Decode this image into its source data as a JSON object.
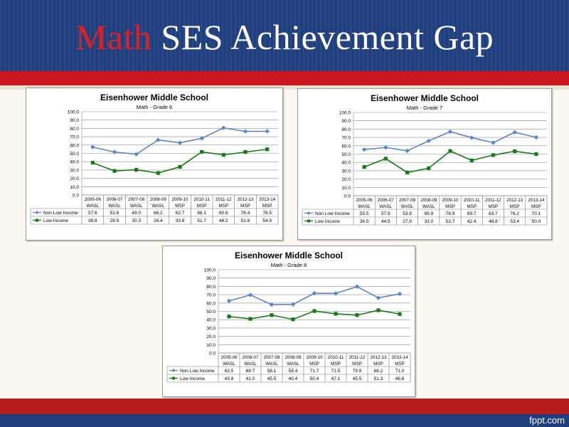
{
  "slide": {
    "title_accent": "Math",
    "title_rest": " SES Achievement Gap",
    "brand": "fppt.com"
  },
  "colors": {
    "header_blue": "#1f3f7f",
    "band_red": "#c8161d",
    "non_low_income": "#5b86c6",
    "low_income": "#177a17"
  },
  "chart_data": [
    {
      "type": "line",
      "title": "Eisenhower Middle School",
      "subtitle": "Math - Grade 6",
      "categories": [
        "2005-06",
        "2006-07",
        "2007-08",
        "2008-09",
        "2009-10",
        "2010-11",
        "2011-12",
        "2012-13",
        "2013-14"
      ],
      "test_labels": [
        "WASL",
        "WASL",
        "WASL",
        "WASL",
        "MSP",
        "MSP",
        "MSP",
        "MSP",
        "MSP"
      ],
      "yticks": [
        "100.0",
        "90.0",
        "80.0",
        "70.0",
        "60.0",
        "50.0",
        "40.0",
        "30.0",
        "20.0",
        "10.0",
        "0.0"
      ],
      "ylim": [
        0,
        100
      ],
      "grid": true,
      "legend": "table-below",
      "series": [
        {
          "name": "Non Low Income",
          "values": [
            57.6,
            51.6,
            49.0,
            66.2,
            62.7,
            68.1,
            80.6,
            76.4,
            76.5
          ],
          "labels": [
            "57.6",
            "51.6",
            "49.0",
            "66.2",
            "62.7",
            "68.1",
            "80.6",
            "76.4",
            "76.5"
          ]
        },
        {
          "name": "Low Income",
          "values": [
            38.8,
            28.9,
            30.3,
            26.4,
            33.8,
            51.7,
            48.2,
            51.6,
            54.9
          ],
          "labels": [
            "38.8",
            "28.9",
            "30.3",
            "26.4",
            "33.8",
            "51.7",
            "48.2",
            "51.6",
            "54.9"
          ]
        }
      ]
    },
    {
      "type": "line",
      "title": "Eisenhower Middle School",
      "subtitle": "Math - Grade 7",
      "categories": [
        "2005-06",
        "2006-07",
        "2007-08",
        "2008-09",
        "2009-10",
        "2010-11",
        "2011-12",
        "2012-13",
        "2013-14"
      ],
      "test_labels": [
        "WASL",
        "WASL",
        "WASL",
        "WASL",
        "MSP",
        "MSP",
        "MSP",
        "MSP",
        "MSP"
      ],
      "yticks": [
        "100.0",
        "90.0",
        "80.0",
        "70.0",
        "60.0",
        "50.0",
        "40.0",
        "30.0",
        "20.0",
        "10.0",
        "0.0"
      ],
      "ylim": [
        0,
        100
      ],
      "grid": true,
      "legend": "table-below",
      "series": [
        {
          "name": "Non Low Income",
          "values": [
            55.5,
            57.9,
            53.9,
            65.9,
            76.9,
            69.7,
            63.7,
            76.2,
            70.1
          ],
          "labels": [
            "55.5",
            "57.9",
            "53.9",
            "65.9",
            "76.9",
            "69.7",
            "63.7",
            "76.2",
            "70.1"
          ]
        },
        {
          "name": "Low Income",
          "values": [
            34.5,
            44.5,
            27.9,
            33.0,
            53.7,
            42.4,
            48.8,
            53.4,
            50.0
          ],
          "labels": [
            "34.5",
            "44.5",
            "27.9",
            "33.0",
            "53.7",
            "42.4",
            "48.8",
            "53.4",
            "50.0"
          ]
        }
      ]
    },
    {
      "type": "line",
      "title": "Eisenhower Middle School",
      "subtitle": "Math - Grade 8",
      "categories": [
        "2005-06",
        "2006-07",
        "2007-08",
        "2008-09",
        "2009-10",
        "2010-11",
        "2011-12",
        "2012-13",
        "2013-14"
      ],
      "test_labels": [
        "WASL",
        "WASL",
        "WASL",
        "WASL",
        "MSP",
        "MSP",
        "MSP",
        "MSP",
        "MSP"
      ],
      "yticks": [
        "100.0",
        "90.0",
        "80.0",
        "70.0",
        "60.0",
        "50.0",
        "40.0",
        "30.0",
        "20.0",
        "10.0",
        "0.0"
      ],
      "ylim": [
        0,
        100
      ],
      "grid": true,
      "legend": "table-below",
      "series": [
        {
          "name": "Non Low Income",
          "values": [
            62.5,
            69.7,
            58.1,
            58.4,
            71.7,
            71.5,
            79.8,
            66.2,
            71.0
          ],
          "labels": [
            "62.5",
            "69.7",
            "58.1",
            "58.4",
            "71.7",
            "71.5",
            "79.8",
            "66.2",
            "71.0"
          ]
        },
        {
          "name": "Low Income",
          "values": [
            43.8,
            41.0,
            45.5,
            40.4,
            50.4,
            47.1,
            45.5,
            51.3,
            46.8
          ],
          "labels": [
            "43.8",
            "41.0",
            "45.5",
            "40.4",
            "50.4",
            "47.1",
            "45.5",
            "51.3",
            "46.8"
          ]
        }
      ]
    }
  ]
}
